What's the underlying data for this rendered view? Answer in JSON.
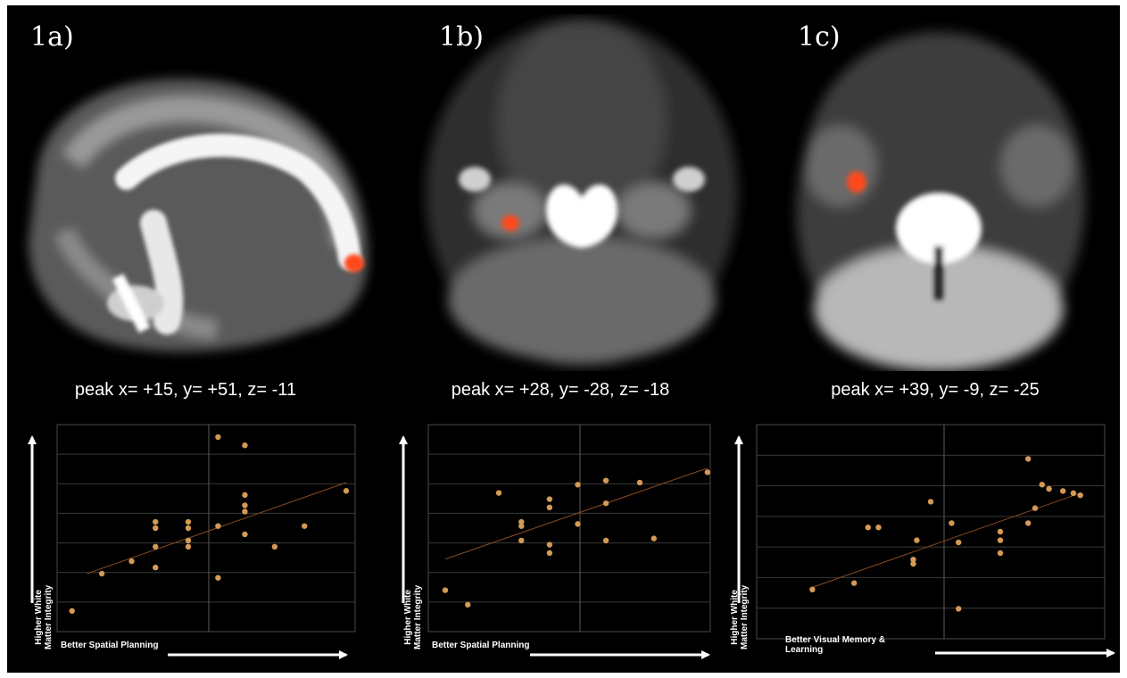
{
  "panels": [
    {
      "label": "1a)",
      "peak": "peak x= +15, y= +51, z= -11",
      "y_axis_label_line1": "Higher White",
      "y_axis_label_line2": "Matter Integrity",
      "x_axis_label": "Better Spatial Planning",
      "cluster_color": "#ff4a1a"
    },
    {
      "label": "1b)",
      "peak": "peak x= +28, y= -28, z= -18",
      "y_axis_label_line1": "Higher White",
      "y_axis_label_line2": "Matter Integrity",
      "x_axis_label": "Better Spatial Planning",
      "cluster_color": "#ff4a1a"
    },
    {
      "label": "1c)",
      "peak": "peak x= +39, y= -9, z= -25",
      "y_axis_label_line1": "Higher White",
      "y_axis_label_line2": "Matter Integrity",
      "x_axis_label": "Better Visual Memory & Learning",
      "cluster_color": "#ff4a1a"
    }
  ],
  "chart_data": [
    {
      "type": "scatter",
      "xlim": [
        0,
        100
      ],
      "ylim": [
        0,
        100
      ],
      "grid": true,
      "point_color": "#d49a55",
      "trend_color": "#8a4a22",
      "points": [
        [
          5,
          10
        ],
        [
          15,
          28
        ],
        [
          25,
          34
        ],
        [
          33,
          31
        ],
        [
          33,
          41
        ],
        [
          33,
          50
        ],
        [
          33,
          53
        ],
        [
          44,
          41
        ],
        [
          44,
          44
        ],
        [
          44,
          50
        ],
        [
          44,
          53
        ],
        [
          54,
          26
        ],
        [
          54,
          51
        ],
        [
          54,
          94
        ],
        [
          63,
          47
        ],
        [
          63,
          58
        ],
        [
          63,
          61
        ],
        [
          63,
          66
        ],
        [
          63,
          90
        ],
        [
          73,
          41
        ],
        [
          83,
          51
        ],
        [
          97,
          68
        ]
      ],
      "trend": [
        [
          10,
          28
        ],
        [
          97,
          72
        ]
      ]
    },
    {
      "type": "scatter",
      "xlim": [
        0,
        100
      ],
      "ylim": [
        0,
        100
      ],
      "grid": true,
      "point_color": "#d49a55",
      "trend_color": "#8a4a22",
      "points": [
        [
          6,
          20
        ],
        [
          14,
          13
        ],
        [
          25,
          67
        ],
        [
          33,
          44
        ],
        [
          33,
          51
        ],
        [
          33,
          53
        ],
        [
          43,
          38
        ],
        [
          43,
          42
        ],
        [
          43,
          60
        ],
        [
          43,
          64
        ],
        [
          53,
          52
        ],
        [
          53,
          71
        ],
        [
          63,
          44
        ],
        [
          63,
          62
        ],
        [
          63,
          73
        ],
        [
          75,
          72
        ],
        [
          80,
          45
        ],
        [
          99,
          77
        ]
      ],
      "trend": [
        [
          6,
          35
        ],
        [
          99,
          79
        ]
      ]
    },
    {
      "type": "scatter",
      "xlim": [
        0,
        100
      ],
      "ylim": [
        0,
        100
      ],
      "grid": true,
      "point_color": "#d49a55",
      "trend_color": "#8a4a22",
      "points": [
        [
          16,
          23
        ],
        [
          28,
          26
        ],
        [
          32,
          52
        ],
        [
          35,
          52
        ],
        [
          45,
          35
        ],
        [
          45,
          37
        ],
        [
          46,
          46
        ],
        [
          50,
          64
        ],
        [
          56,
          54
        ],
        [
          58,
          45
        ],
        [
          58,
          14
        ],
        [
          70,
          40
        ],
        [
          70,
          46
        ],
        [
          70,
          50
        ],
        [
          78,
          54
        ],
        [
          78,
          84
        ],
        [
          80,
          61
        ],
        [
          82,
          72
        ],
        [
          84,
          70
        ],
        [
          88,
          69
        ],
        [
          91,
          68
        ],
        [
          93,
          67
        ]
      ],
      "trend": [
        [
          16,
          24
        ],
        [
          93,
          68
        ]
      ]
    }
  ]
}
